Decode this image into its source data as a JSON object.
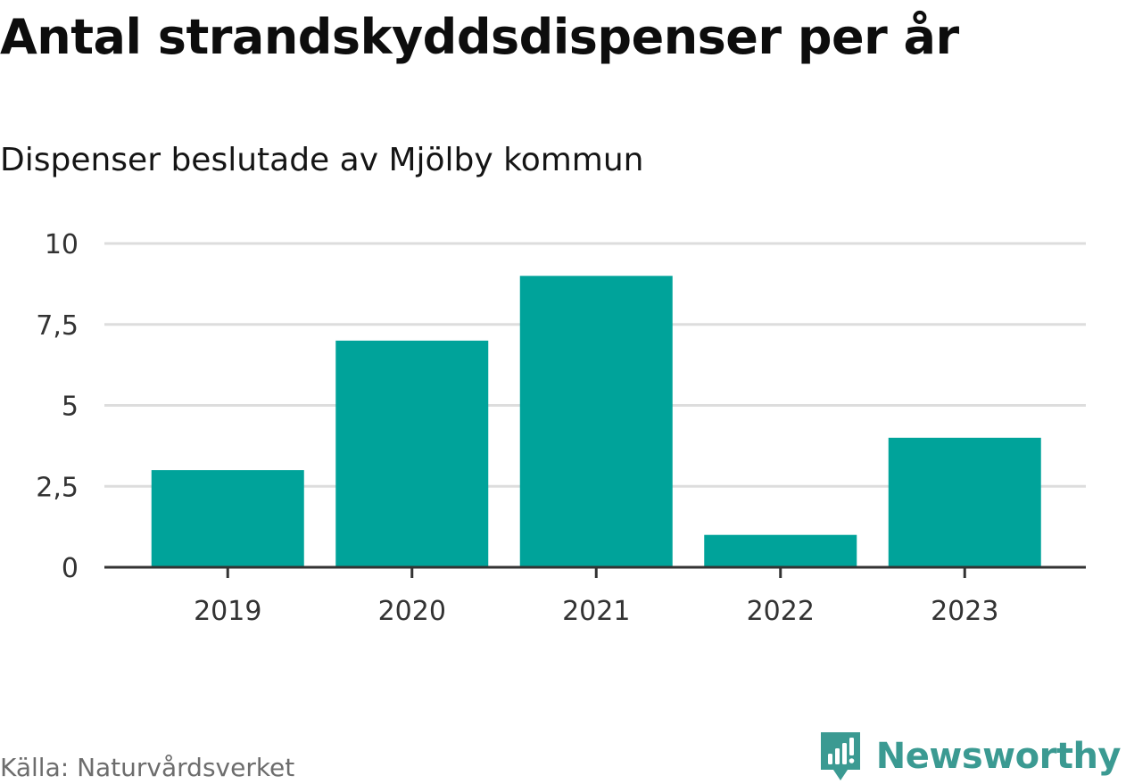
{
  "chart_data": {
    "type": "bar",
    "title": "Antal strandskyddsdispenser per år",
    "subtitle": "Dispenser beslutade av Mjölby kommun",
    "categories": [
      "2019",
      "2020",
      "2021",
      "2022",
      "2023"
    ],
    "values": [
      3,
      7,
      9,
      1,
      4
    ],
    "yticks": [
      0,
      2.5,
      5,
      7.5,
      10
    ],
    "ytick_labels": [
      "0",
      "2,5",
      "5",
      "7,5",
      "10"
    ],
    "ylim": [
      0,
      10
    ],
    "xlabel": "",
    "ylabel": "",
    "grid": true,
    "bar_color": "#00a39a",
    "grid_color": "#dddddd",
    "axis_color": "#333333"
  },
  "footer": {
    "source": "Källa: Naturvårdsverket",
    "brand": "Newsworthy",
    "brand_color": "#3b9a92"
  }
}
